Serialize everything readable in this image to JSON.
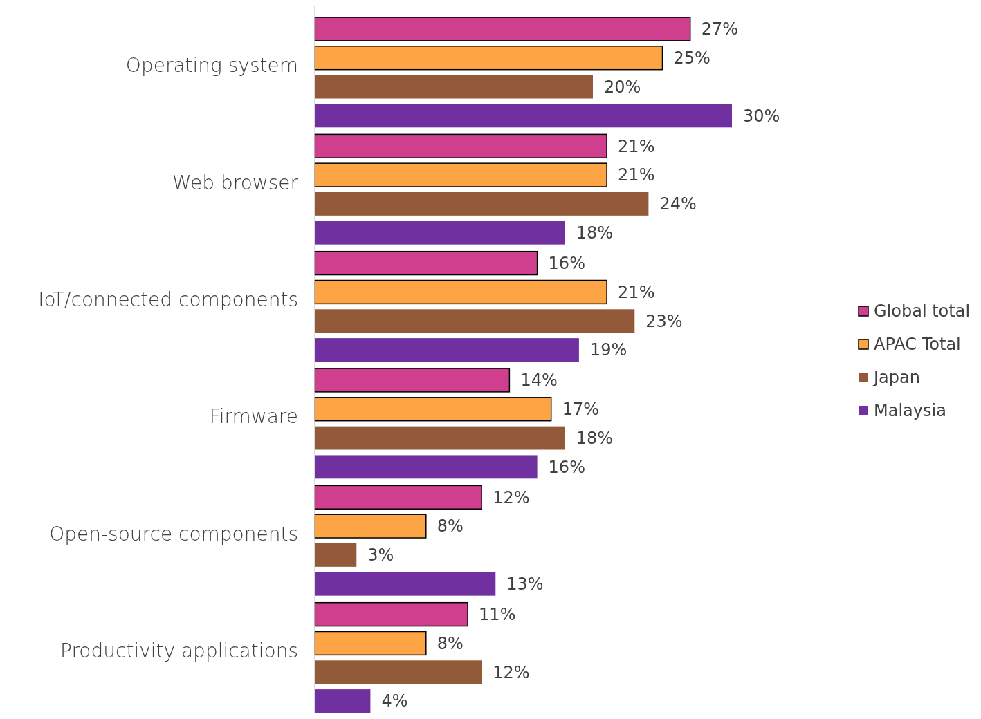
{
  "chart_data": {
    "type": "bar",
    "orientation": "horizontal",
    "categories": [
      "Operating system",
      "Web browser",
      "IoT/connected components",
      "Firmware",
      "Open-source components",
      "Productivity applications"
    ],
    "series": [
      {
        "name": "Global total",
        "color": "#d03f8e",
        "values": [
          27,
          21,
          16,
          14,
          12,
          11
        ],
        "value_labels": [
          "27%",
          "21%",
          "16%",
          "14%",
          "12%",
          "11%"
        ]
      },
      {
        "name": "APAC Total",
        "color": "#fda444",
        "values": [
          25,
          21,
          21,
          17,
          8,
          8
        ],
        "value_labels": [
          "25%",
          "21%",
          "21%",
          "17%",
          "8%",
          "8%"
        ]
      },
      {
        "name": "Japan",
        "color": "#935a3a",
        "values": [
          20,
          24,
          23,
          18,
          3,
          12
        ],
        "value_labels": [
          "20%",
          "24%",
          "23%",
          "18%",
          "3%",
          "12%"
        ]
      },
      {
        "name": "Malaysia",
        "color": "#7030a0",
        "values": [
          30,
          18,
          19,
          16,
          13,
          4
        ],
        "value_labels": [
          "30%",
          "18%",
          "19%",
          "16%",
          "13%",
          "4%"
        ]
      }
    ],
    "legend": "right"
  }
}
